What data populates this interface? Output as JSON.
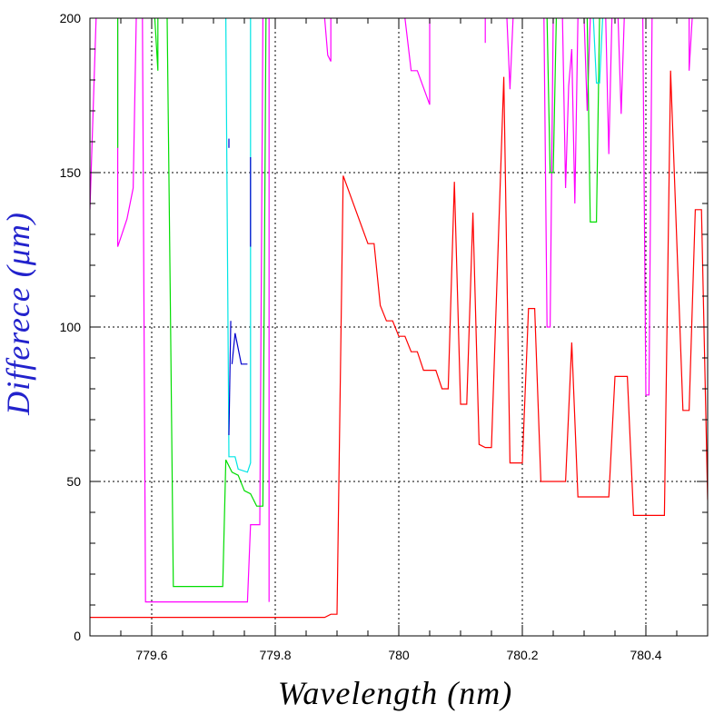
{
  "chart_data": {
    "type": "line",
    "title": "",
    "xlabel": "Wavelength (nm)",
    "ylabel": "Differece (μm)",
    "xlim": [
      779.5,
      780.5
    ],
    "ylim": [
      0,
      200
    ],
    "x_ticks": [
      779.6,
      779.8,
      780,
      780.2,
      780.4
    ],
    "x_tick_labels": [
      "779.6",
      "779.8",
      "780",
      "780.2",
      "780.4"
    ],
    "y_ticks": [
      0,
      50,
      100,
      150,
      200
    ],
    "y_tick_labels": [
      "0",
      "50",
      "100",
      "150",
      "200"
    ],
    "grid": "dotted at major ticks",
    "legend": "none",
    "series": [
      {
        "color": "#ff0000",
        "points": [
          [
            779.5,
            6
          ],
          [
            779.87,
            6
          ],
          [
            779.88,
            6
          ],
          [
            779.89,
            7
          ],
          [
            779.9,
            7
          ],
          [
            779.91,
            149
          ],
          [
            779.95,
            127
          ],
          [
            779.96,
            127
          ],
          [
            779.97,
            107
          ],
          [
            779.98,
            102
          ],
          [
            779.99,
            102
          ],
          [
            780,
            97
          ],
          [
            780.01,
            97
          ],
          [
            780.02,
            92
          ],
          [
            780.03,
            92
          ],
          [
            780.04,
            86
          ],
          [
            780.06,
            86
          ],
          [
            780.07,
            80
          ],
          [
            780.08,
            80
          ],
          [
            780.09,
            147
          ],
          [
            780.1,
            75
          ],
          [
            780.11,
            75
          ],
          [
            780.12,
            137
          ],
          [
            780.13,
            62
          ],
          [
            780.14,
            61
          ],
          [
            780.15,
            61
          ],
          [
            780.17,
            181
          ],
          [
            780.18,
            56
          ],
          [
            780.2,
            56
          ],
          [
            780.21,
            106
          ],
          [
            780.22,
            106
          ],
          [
            780.23,
            50
          ],
          [
            780.27,
            50
          ],
          [
            780.28,
            95
          ],
          [
            780.29,
            45
          ],
          [
            780.34,
            45
          ],
          [
            780.35,
            84
          ],
          [
            780.37,
            84
          ],
          [
            780.38,
            39
          ],
          [
            780.43,
            39
          ],
          [
            780.44,
            183
          ],
          [
            780.46,
            73
          ],
          [
            780.47,
            73
          ],
          [
            780.48,
            138
          ],
          [
            780.49,
            138
          ],
          [
            780.5,
            44
          ]
        ]
      },
      {
        "color": "#ff00ff",
        "points": [
          [
            779.5,
            138
          ],
          [
            779.51,
            200
          ]
        ],
        "extra": [
          [
            [
              779.545,
              200
            ],
            [
              779.545,
              126
            ],
            [
              779.55,
              129
            ],
            [
              779.56,
              135
            ],
            [
              779.57,
              145
            ],
            [
              779.575,
              200
            ]
          ],
          [
            [
              779.585,
              200
            ],
            [
              779.59,
              11
            ],
            [
              779.755,
              11
            ],
            [
              779.76,
              36
            ],
            [
              779.775,
              36
            ],
            [
              779.78,
              200
            ]
          ],
          [
            [
              779.79,
              200
            ],
            [
              779.79,
              11
            ]
          ],
          [
            [
              779.88,
              200
            ],
            [
              779.885,
              188
            ],
            [
              779.89,
              186
            ],
            [
              779.89,
              200
            ]
          ],
          [
            [
              780.01,
              200
            ],
            [
              780.02,
              183
            ],
            [
              780.03,
              183
            ],
            [
              780.05,
              172
            ],
            [
              780.05,
              200
            ]
          ],
          [
            [
              780.14,
              200
            ],
            [
              780.14,
              192
            ]
          ],
          [
            [
              780.175,
              200
            ],
            [
              780.18,
              177
            ],
            [
              780.185,
              200
            ]
          ],
          [
            [
              780.235,
              200
            ],
            [
              780.24,
              100
            ],
            [
              780.245,
              100
            ],
            [
              780.25,
              200
            ]
          ],
          [
            [
              780.265,
              200
            ],
            [
              780.27,
              145
            ],
            [
              780.275,
              178
            ],
            [
              780.28,
              190
            ],
            [
              780.285,
              140
            ],
            [
              780.29,
              200
            ]
          ],
          [
            [
              780.3,
              200
            ],
            [
              780.305,
              170
            ],
            [
              780.31,
              200
            ]
          ],
          [
            [
              780.335,
              200
            ],
            [
              780.34,
              156
            ],
            [
              780.345,
              200
            ]
          ],
          [
            [
              780.355,
              200
            ],
            [
              780.36,
              169
            ],
            [
              780.365,
              200
            ]
          ],
          [
            [
              780.395,
              200
            ],
            [
              780.4,
              78
            ],
            [
              780.405,
              78
            ],
            [
              780.41,
              200
            ]
          ],
          [
            [
              780.47,
              200
            ],
            [
              780.47,
              183
            ],
            [
              780.475,
              200
            ]
          ]
        ]
      },
      {
        "color": "#00dd00",
        "points": [
          [
            779.545,
            200
          ],
          [
            779.545,
            158
          ],
          [
            779.545,
            200
          ]
        ],
        "extra": [
          [
            [
              779.605,
              200
            ],
            [
              779.61,
              183
            ],
            [
              779.61,
              200
            ]
          ],
          [
            [
              779.625,
              200
            ],
            [
              779.63,
              111
            ],
            [
              779.635,
              16
            ],
            [
              779.715,
              16
            ],
            [
              779.72,
              57
            ],
            [
              779.73,
              53
            ],
            [
              779.74,
              52
            ],
            [
              779.75,
              47
            ],
            [
              779.76,
              46
            ],
            [
              779.77,
              42
            ],
            [
              779.78,
              42
            ],
            [
              779.785,
              200
            ]
          ],
          [
            [
              780.24,
              200
            ],
            [
              780.245,
              150
            ],
            [
              780.25,
              150
            ],
            [
              780.255,
              200
            ]
          ],
          [
            [
              780.305,
              200
            ],
            [
              780.31,
              134
            ],
            [
              780.32,
              134
            ],
            [
              780.325,
              200
            ]
          ]
        ]
      },
      {
        "color": "#00e5e5",
        "points": [
          [
            779.72,
            200
          ],
          [
            779.725,
            58
          ],
          [
            779.735,
            58
          ],
          [
            779.74,
            54
          ],
          [
            779.755,
            53
          ],
          [
            779.76,
            56
          ],
          [
            779.76,
            200
          ]
        ],
        "extra": [
          [
            [
              780.315,
              200
            ],
            [
              780.32,
              179
            ],
            [
              780.325,
              179
            ],
            [
              780.33,
              200
            ]
          ]
        ]
      },
      {
        "color": "#0000cc",
        "points": [
          [
            779.725,
            161
          ],
          [
            779.725,
            158
          ]
        ],
        "extra": [
          [
            [
              779.725,
              65
            ],
            [
              779.728,
              102
            ]
          ],
          [
            [
              779.73,
              88
            ],
            [
              779.735,
              98
            ],
            [
              779.745,
              88
            ],
            [
              779.755,
              88
            ]
          ],
          [
            [
              779.76,
              155
            ],
            [
              779.76,
              126
            ]
          ]
        ]
      }
    ]
  }
}
